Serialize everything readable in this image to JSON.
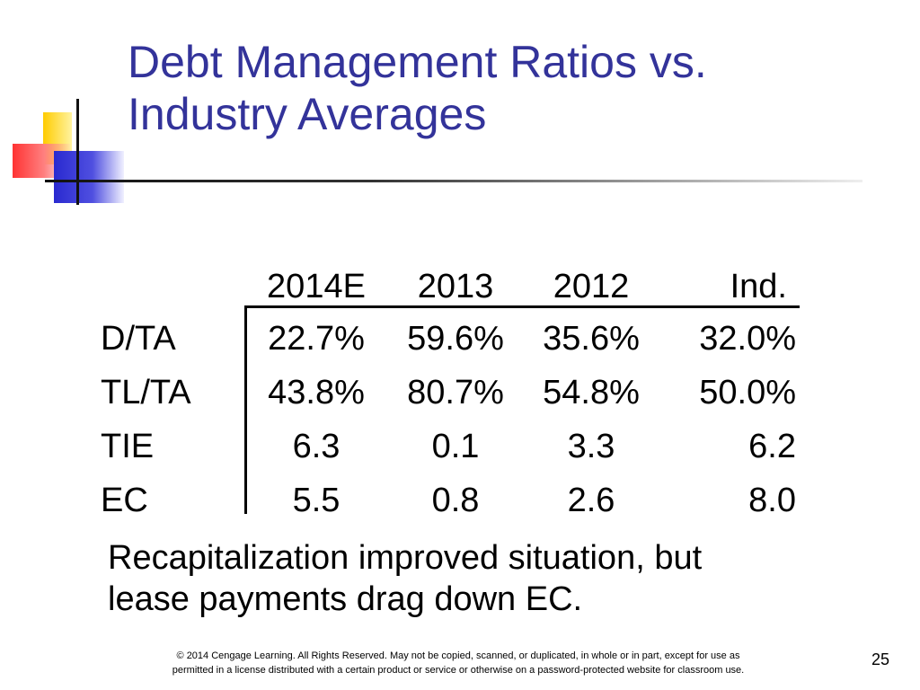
{
  "slide": {
    "title_lines": [
      "Debt Management Ratios vs.",
      "Industry Averages"
    ],
    "table": {
      "columns": [
        "2014E",
        "2013",
        "2012",
        "Ind."
      ],
      "rows": [
        {
          "label": "D/TA",
          "values": [
            "22.7%",
            "59.6%",
            "35.6%",
            "32.0%"
          ]
        },
        {
          "label": "TL/TA",
          "values": [
            "43.8%",
            "80.7%",
            "54.8%",
            "50.0%"
          ]
        },
        {
          "label": "TIE",
          "values": [
            "6.3",
            "0.1",
            "3.3",
            "6.2"
          ]
        },
        {
          "label": "EC",
          "values": [
            "5.5",
            "0.8",
            "2.6",
            "8.0"
          ]
        }
      ]
    },
    "note_lines": [
      "Recapitalization improved situation, but",
      "lease payments drag down EC."
    ],
    "copyright_lines": [
      "© 2014 Cengage Learning. All Rights Reserved. May not be copied, scanned, or duplicated, in whole or in part, except for use as",
      "permitted in a license distributed with a certain product or service or otherwise on a password-protected website for classroom use."
    ],
    "page_number": "25"
  },
  "colors": {
    "title": "#33339a",
    "accent_yellow": "#ffcc00",
    "accent_red": "#ff3333",
    "accent_blue": "#2a2ad0"
  }
}
